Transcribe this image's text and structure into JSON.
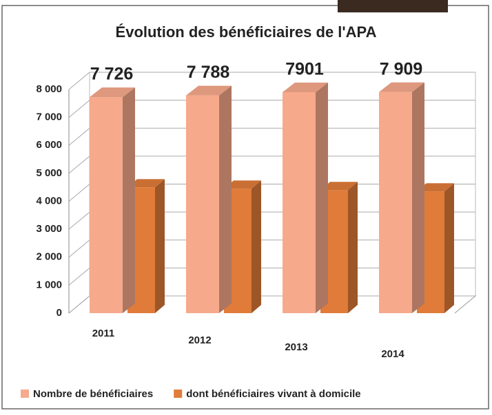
{
  "chart_data": {
    "type": "bar3d",
    "title": "Évolution des bénéficiaires de l'APA",
    "categories": [
      "2011",
      "2012",
      "2013",
      "2014"
    ],
    "series": [
      {
        "name": "Nombre de bénéficiaires",
        "color": "#f7a98b",
        "values": [
          7726,
          7788,
          7901,
          7909
        ],
        "value_labels": [
          "7 726",
          "7 788",
          "7901",
          "7 909"
        ]
      },
      {
        "name": "dont bénéficiaires vivant à domicile",
        "color": "#e07b39",
        "values": [
          4500,
          4450,
          4400,
          4350
        ]
      }
    ],
    "ylim": [
      0,
      8000
    ],
    "yticks": [
      0,
      {
        "value": 1000,
        "label": "1 000"
      },
      {
        "value": 2000,
        "label": "2 000"
      },
      {
        "value": 3000,
        "label": "3 000"
      },
      {
        "value": 4000,
        "label": "4 000"
      },
      {
        "value": 5000,
        "label": "5 000"
      },
      {
        "value": 6000,
        "label": "6 000"
      },
      {
        "value": 7000,
        "label": "7 000"
      },
      {
        "value": 8000,
        "label": "8 000"
      }
    ],
    "grid": true,
    "legend": "bottom"
  }
}
